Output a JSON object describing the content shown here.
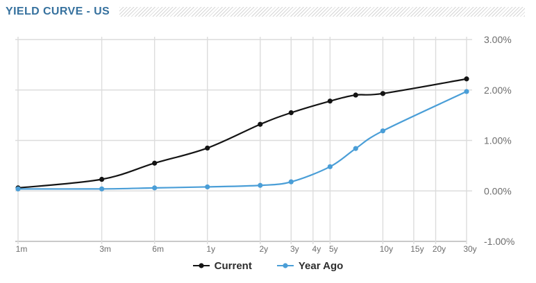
{
  "header": {
    "title": "YIELD CURVE - US"
  },
  "colors": {
    "title": "#36719e",
    "gridline": "#dcdcdc",
    "axis_line": "#c9c9c9",
    "tick_label": "#6d6d6d",
    "legend_text": "#2d2d2d",
    "current_series": "#141414",
    "year_ago_series": "#4a9ed7"
  },
  "legend": {
    "items": [
      {
        "label": "Current"
      },
      {
        "label": "Year Ago"
      }
    ]
  },
  "chart_data": {
    "type": "line",
    "title": "YIELD CURVE - US",
    "x_scale": "log",
    "x_unit": "months",
    "grid": true,
    "legend_position": "bottom",
    "ylim": [
      -1,
      3
    ],
    "x_ticks": [
      {
        "label": "1m",
        "months": 1
      },
      {
        "label": "3m",
        "months": 3
      },
      {
        "label": "6m",
        "months": 6
      },
      {
        "label": "1y",
        "months": 12
      },
      {
        "label": "2y",
        "months": 24
      },
      {
        "label": "3y",
        "months": 36
      },
      {
        "label": "4y",
        "months": 48
      },
      {
        "label": "5y",
        "months": 60
      },
      {
        "label": "10y",
        "months": 120
      },
      {
        "label": "15y",
        "months": 180
      },
      {
        "label": "20y",
        "months": 240
      },
      {
        "label": "30y",
        "months": 360
      }
    ],
    "y_ticks": [
      {
        "label": "3.00%",
        "value": 3
      },
      {
        "label": "2.00%",
        "value": 2
      },
      {
        "label": "1.00%",
        "value": 1
      },
      {
        "label": "0.00%",
        "value": 0
      },
      {
        "label": "-1.00%",
        "value": -1
      }
    ],
    "series": [
      {
        "name": "Current",
        "color": "#141414",
        "points": [
          {
            "maturity": "1m",
            "months": 1,
            "value": 0.06
          },
          {
            "maturity": "3m",
            "months": 3,
            "value": 0.23
          },
          {
            "maturity": "6m",
            "months": 6,
            "value": 0.55
          },
          {
            "maturity": "1y",
            "months": 12,
            "value": 0.85
          },
          {
            "maturity": "2y",
            "months": 24,
            "value": 1.32
          },
          {
            "maturity": "3y",
            "months": 36,
            "value": 1.55
          },
          {
            "maturity": "5y",
            "months": 60,
            "value": 1.78
          },
          {
            "maturity": "7y",
            "months": 84,
            "value": 1.9
          },
          {
            "maturity": "10y",
            "months": 120,
            "value": 1.93
          },
          {
            "maturity": "30y",
            "months": 360,
            "value": 2.22
          }
        ]
      },
      {
        "name": "Year Ago",
        "color": "#4a9ed7",
        "points": [
          {
            "maturity": "1m",
            "months": 1,
            "value": 0.04
          },
          {
            "maturity": "3m",
            "months": 3,
            "value": 0.04
          },
          {
            "maturity": "6m",
            "months": 6,
            "value": 0.06
          },
          {
            "maturity": "1y",
            "months": 12,
            "value": 0.08
          },
          {
            "maturity": "2y",
            "months": 24,
            "value": 0.11
          },
          {
            "maturity": "3y",
            "months": 36,
            "value": 0.18
          },
          {
            "maturity": "5y",
            "months": 60,
            "value": 0.48
          },
          {
            "maturity": "7y",
            "months": 84,
            "value": 0.84
          },
          {
            "maturity": "10y",
            "months": 120,
            "value": 1.19
          },
          {
            "maturity": "30y",
            "months": 360,
            "value": 1.97
          }
        ]
      }
    ]
  }
}
